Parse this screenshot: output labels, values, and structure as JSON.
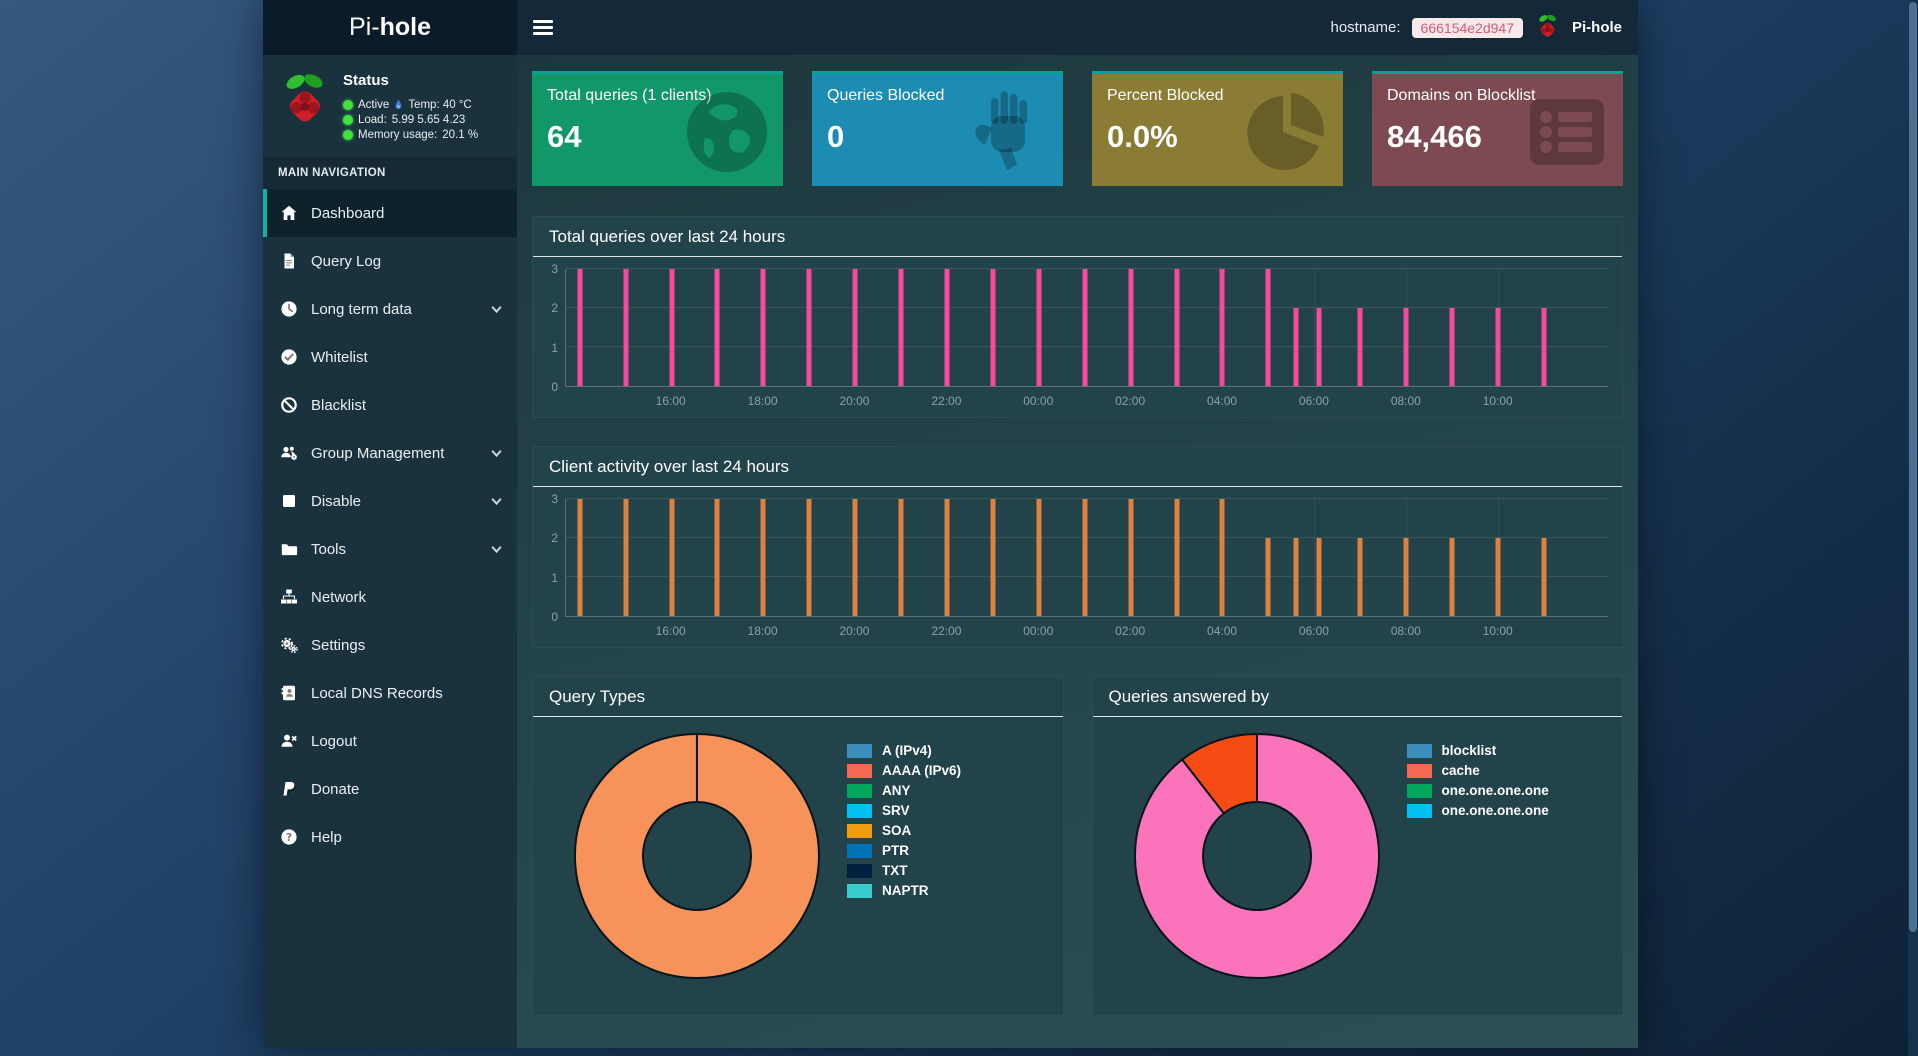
{
  "navbar": {
    "brand_light": "Pi-",
    "brand_bold": "hole",
    "hostname_label": "hostname:",
    "hostname_value": "666154e2d947",
    "account_label": "Pi-hole"
  },
  "status": {
    "title": "Status",
    "rows": [
      {
        "label": "Active",
        "value": "Temp: 40 °C",
        "has_temp_icon": true
      },
      {
        "label": "Load:",
        "value": "5.99  5.65  4.23",
        "has_temp_icon": false
      },
      {
        "label": "Memory usage:",
        "value": "20.1 %",
        "has_temp_icon": false
      }
    ]
  },
  "sidebar": {
    "section_label": "MAIN NAVIGATION",
    "items": [
      {
        "label": "Dashboard",
        "icon": "home",
        "active": true,
        "expandable": false
      },
      {
        "label": "Query Log",
        "icon": "file",
        "active": false,
        "expandable": false
      },
      {
        "label": "Long term data",
        "icon": "clock",
        "active": false,
        "expandable": true
      },
      {
        "label": "Whitelist",
        "icon": "check-circle",
        "active": false,
        "expandable": false
      },
      {
        "label": "Blacklist",
        "icon": "ban",
        "active": false,
        "expandable": false
      },
      {
        "label": "Group Management",
        "icon": "users-gear",
        "active": false,
        "expandable": true
      },
      {
        "label": "Disable",
        "icon": "stop",
        "active": false,
        "expandable": true
      },
      {
        "label": "Tools",
        "icon": "folder",
        "active": false,
        "expandable": true
      },
      {
        "label": "Network",
        "icon": "sitemap",
        "active": false,
        "expandable": false
      },
      {
        "label": "Settings",
        "icon": "gears",
        "active": false,
        "expandable": false
      },
      {
        "label": "Local DNS Records",
        "icon": "address-book",
        "active": false,
        "expandable": false
      },
      {
        "label": "Logout",
        "icon": "user-times",
        "active": false,
        "expandable": false
      },
      {
        "label": "Donate",
        "icon": "paypal",
        "active": false,
        "expandable": false
      },
      {
        "label": "Help",
        "icon": "question",
        "active": false,
        "expandable": false
      }
    ]
  },
  "cards": [
    {
      "title": "Total queries (1 clients)",
      "value": "64",
      "color": "#129769",
      "icon": "globe"
    },
    {
      "title": "Queries Blocked",
      "value": "0",
      "color": "#1d8cb3",
      "icon": "hand"
    },
    {
      "title": "Percent Blocked",
      "value": "0.0%",
      "color": "#8a7b35",
      "icon": "pie"
    },
    {
      "title": "Domains on Blocklist",
      "value": "84,466",
      "color": "#7c4a50",
      "icon": "list"
    }
  ],
  "chart_data": [
    {
      "type": "bar",
      "title": "Total queries over last 24 hours",
      "bar_color": "#f8499e",
      "ylim": [
        0,
        3
      ],
      "yticks": [
        "0",
        "1",
        "2",
        "3"
      ],
      "grid": true,
      "x_window": [
        13.7,
        36.4
      ],
      "xticks": [
        {
          "hour": 16,
          "label": "16:00"
        },
        {
          "hour": 18,
          "label": "18:00"
        },
        {
          "hour": 20,
          "label": "20:00"
        },
        {
          "hour": 22,
          "label": "22:00"
        },
        {
          "hour": 24,
          "label": "00:00"
        },
        {
          "hour": 26,
          "label": "02:00"
        },
        {
          "hour": 28,
          "label": "04:00"
        },
        {
          "hour": 30,
          "label": "06:00"
        },
        {
          "hour": 32,
          "label": "08:00"
        },
        {
          "hour": 34,
          "label": "10:00"
        }
      ],
      "bars": [
        [
          14,
          3
        ],
        [
          15,
          3
        ],
        [
          16,
          3
        ],
        [
          17,
          3
        ],
        [
          18,
          3
        ],
        [
          19,
          3
        ],
        [
          20,
          3
        ],
        [
          21,
          3
        ],
        [
          22,
          3
        ],
        [
          23,
          3
        ],
        [
          24,
          3
        ],
        [
          25,
          3
        ],
        [
          26,
          3
        ],
        [
          27,
          3
        ],
        [
          28,
          3
        ],
        [
          29,
          3
        ],
        [
          29.6,
          2
        ],
        [
          30.1,
          2
        ],
        [
          31,
          2
        ],
        [
          32,
          2
        ],
        [
          33,
          2
        ],
        [
          34,
          2
        ],
        [
          35,
          2
        ]
      ]
    },
    {
      "type": "bar",
      "title": "Client activity over last 24 hours",
      "bar_color": "#dd8040",
      "ylim": [
        0,
        3
      ],
      "yticks": [
        "0",
        "1",
        "2",
        "3"
      ],
      "grid": true,
      "x_window": [
        13.7,
        36.4
      ],
      "xticks": [
        {
          "hour": 16,
          "label": "16:00"
        },
        {
          "hour": 18,
          "label": "18:00"
        },
        {
          "hour": 20,
          "label": "20:00"
        },
        {
          "hour": 22,
          "label": "22:00"
        },
        {
          "hour": 24,
          "label": "00:00"
        },
        {
          "hour": 26,
          "label": "02:00"
        },
        {
          "hour": 28,
          "label": "04:00"
        },
        {
          "hour": 30,
          "label": "06:00"
        },
        {
          "hour": 32,
          "label": "08:00"
        },
        {
          "hour": 34,
          "label": "10:00"
        }
      ],
      "bars": [
        [
          14,
          3
        ],
        [
          15,
          3
        ],
        [
          16,
          3
        ],
        [
          17,
          3
        ],
        [
          18,
          3
        ],
        [
          19,
          3
        ],
        [
          20,
          3
        ],
        [
          21,
          3
        ],
        [
          22,
          3
        ],
        [
          23,
          3
        ],
        [
          24,
          3
        ],
        [
          25,
          3
        ],
        [
          26,
          3
        ],
        [
          27,
          3
        ],
        [
          28,
          3
        ],
        [
          29,
          2
        ],
        [
          29.6,
          2
        ],
        [
          30.1,
          2
        ],
        [
          31,
          2
        ],
        [
          32,
          2
        ],
        [
          33,
          2
        ],
        [
          34,
          2
        ],
        [
          35,
          2
        ]
      ]
    },
    {
      "type": "donut",
      "title": "Query Types",
      "legend": [
        {
          "label": "A (IPv4)",
          "color": "#3c8dbc"
        },
        {
          "label": "AAAA (IPv6)",
          "color": "#f56954"
        },
        {
          "label": "ANY",
          "color": "#00a65a"
        },
        {
          "label": "SRV",
          "color": "#00c0ef"
        },
        {
          "label": "SOA",
          "color": "#f39c12"
        },
        {
          "label": "PTR",
          "color": "#0073b7"
        },
        {
          "label": "TXT",
          "color": "#001f3f"
        },
        {
          "label": "NAPTR",
          "color": "#39cccc"
        }
      ],
      "slices": [
        {
          "value": 100,
          "color": "#f7935a"
        }
      ],
      "outline": "#0a141c"
    },
    {
      "type": "donut",
      "title": "Queries answered by",
      "legend": [
        {
          "label": "blocklist",
          "color": "#3c8dbc"
        },
        {
          "label": "cache",
          "color": "#f56954"
        },
        {
          "label": "one.one.one.one",
          "color": "#00a65a"
        },
        {
          "label": "one.one.one.one",
          "color": "#00c0ef"
        }
      ],
      "slices": [
        {
          "value": 89.5,
          "color": "#fb74bb"
        },
        {
          "value": 10.5,
          "color": "#f64c14"
        }
      ],
      "outline": "#0a141c"
    }
  ]
}
